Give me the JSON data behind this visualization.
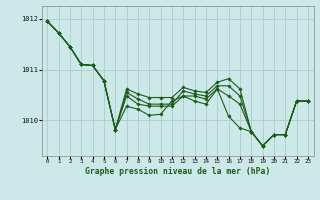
{
  "title": "Graphe pression niveau de la mer (hPa)",
  "bg_color": "#cce8e8",
  "grid_color": "#aacccc",
  "line_color": "#1a5c1a",
  "marker_color": "#1a5c1a",
  "xlim": [
    -0.5,
    23.5
  ],
  "ylim": [
    1009.3,
    1012.25
  ],
  "yticks": [
    1010,
    1011,
    1012
  ],
  "xticks": [
    0,
    1,
    2,
    3,
    4,
    5,
    6,
    7,
    8,
    9,
    10,
    11,
    12,
    13,
    14,
    15,
    16,
    17,
    18,
    19,
    20,
    21,
    22,
    23
  ],
  "series": [
    [
      1011.95,
      1011.72,
      1011.45,
      1011.1,
      1011.08,
      1010.78,
      1009.82,
      1010.28,
      1010.22,
      1010.1,
      1010.12,
      1010.38,
      1010.48,
      1010.38,
      1010.32,
      1010.62,
      1010.08,
      1009.85,
      1009.78,
      1009.5,
      1009.72,
      1009.72,
      1010.38,
      1010.38
    ],
    [
      1011.95,
      1011.72,
      1011.45,
      1011.1,
      1011.08,
      1010.78,
      1009.82,
      1010.48,
      1010.32,
      1010.28,
      1010.28,
      1010.28,
      1010.48,
      1010.48,
      1010.42,
      1010.62,
      1010.48,
      1010.32,
      1009.78,
      1009.5,
      1009.72,
      1009.72,
      1010.38,
      1010.38
    ],
    [
      1011.95,
      1011.72,
      1011.45,
      1011.1,
      1011.08,
      1010.78,
      1009.82,
      1010.55,
      1010.42,
      1010.32,
      1010.32,
      1010.32,
      1010.58,
      1010.52,
      1010.48,
      1010.68,
      1010.68,
      1010.48,
      1009.78,
      1009.5,
      1009.72,
      1009.72,
      1010.38,
      1010.38
    ],
    [
      1011.95,
      1011.72,
      1011.45,
      1011.1,
      1011.08,
      1010.78,
      1009.82,
      1010.62,
      1010.52,
      1010.45,
      1010.45,
      1010.45,
      1010.65,
      1010.58,
      1010.55,
      1010.75,
      1010.82,
      1010.62,
      1009.78,
      1009.5,
      1009.72,
      1009.72,
      1010.38,
      1010.38
    ]
  ]
}
